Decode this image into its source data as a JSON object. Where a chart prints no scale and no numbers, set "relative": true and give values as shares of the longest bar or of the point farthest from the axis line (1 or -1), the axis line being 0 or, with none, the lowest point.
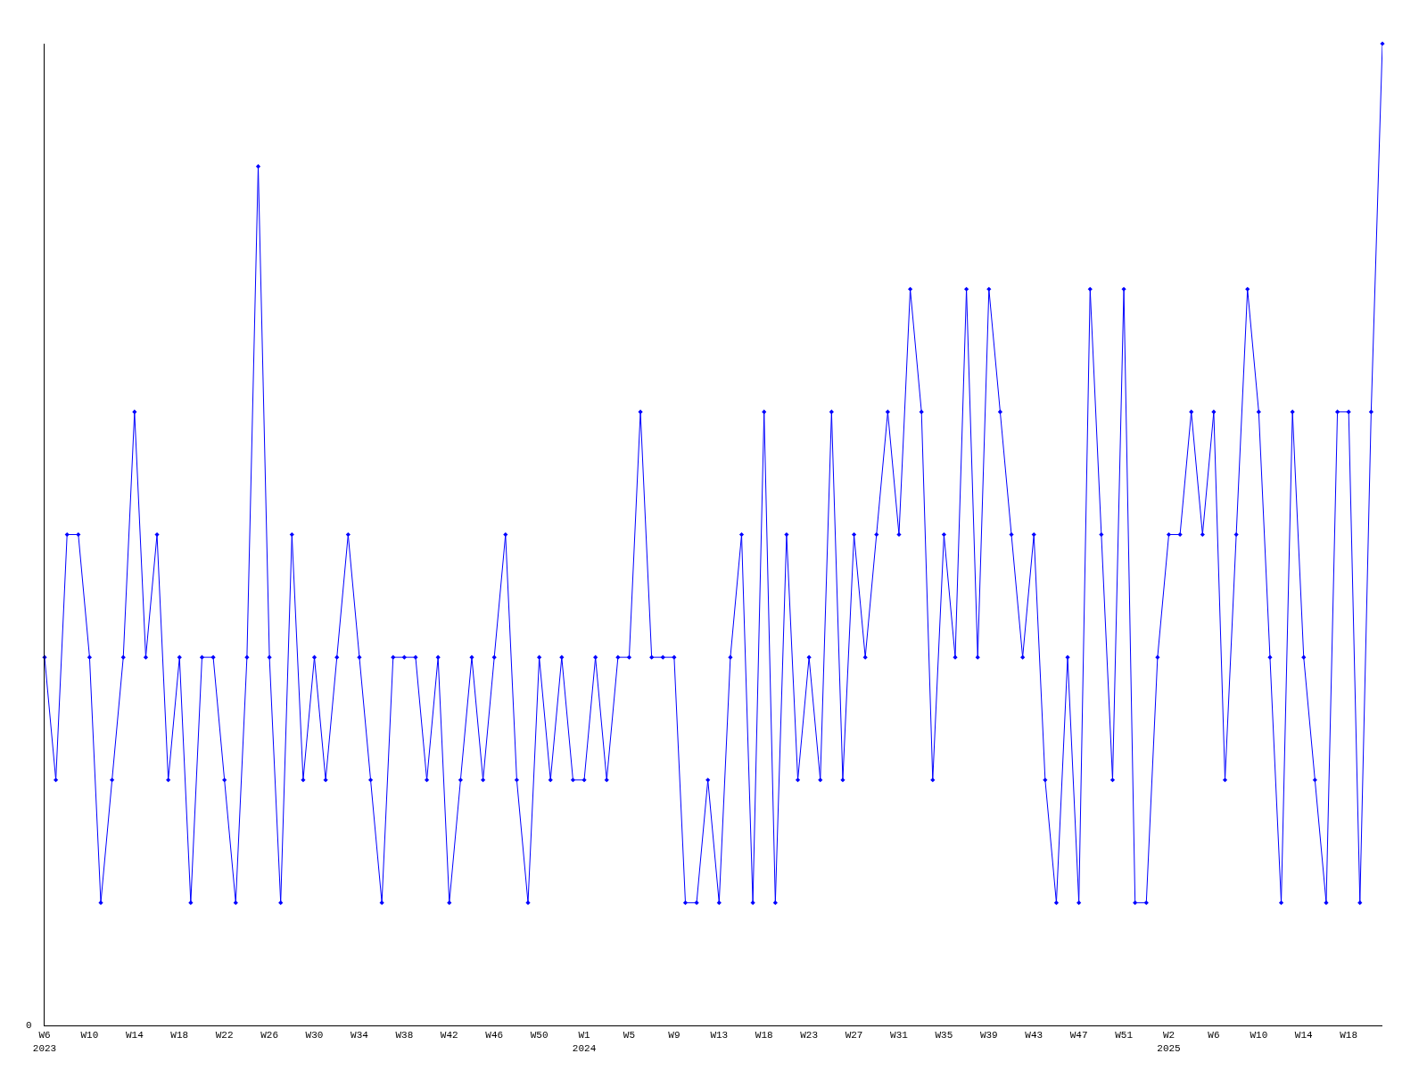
{
  "chart_data": {
    "type": "line",
    "relative": true,
    "marker": "diamond",
    "line_style": "solid",
    "annotations": [
      "0"
    ],
    "categories": [
      "W6\n2023",
      null,
      null,
      null,
      "W10",
      null,
      null,
      null,
      "W14",
      null,
      null,
      null,
      "W18",
      null,
      null,
      null,
      "W22",
      null,
      null,
      null,
      "W26",
      null,
      null,
      null,
      "W30",
      null,
      null,
      null,
      "W34",
      null,
      null,
      null,
      "W38",
      null,
      null,
      null,
      "W42",
      null,
      null,
      null,
      "W46",
      null,
      null,
      null,
      "W50",
      null,
      null,
      null,
      "W1\n2024",
      null,
      null,
      null,
      "W5",
      null,
      null,
      null,
      "W9",
      null,
      null,
      null,
      "W13",
      null,
      null,
      null,
      "W18",
      null,
      null,
      null,
      "W23",
      null,
      null,
      null,
      "W27",
      null,
      null,
      null,
      "W31",
      null,
      null,
      null,
      "W35",
      null,
      null,
      null,
      "W39",
      null,
      null,
      null,
      "W43",
      null,
      null,
      null,
      "W47",
      null,
      null,
      null,
      "W51",
      null,
      null,
      null,
      "W2\n2025",
      null,
      null,
      null,
      "W6",
      null,
      null,
      null,
      "W10",
      null,
      null,
      null,
      "W14",
      null,
      null,
      null,
      "W18",
      null,
      null,
      null
    ],
    "series": [
      {
        "color": "#0000ff",
        "values": [
          0.375,
          0.25,
          0.5,
          0.5,
          0.375,
          0.125,
          0.25,
          0.375,
          0.625,
          0.375,
          0.5,
          0.25,
          0.375,
          0.125,
          0.375,
          0.375,
          0.25,
          0.125,
          0.375,
          0.875,
          0.375,
          0.125,
          0.5,
          0.25,
          0.375,
          0.25,
          0.375,
          0.5,
          0.375,
          0.25,
          0.125,
          0.375,
          0.375,
          0.375,
          0.25,
          0.375,
          0.125,
          0.25,
          0.375,
          0.25,
          0.375,
          0.5,
          0.25,
          0.125,
          0.375,
          0.25,
          0.375,
          0.25,
          0.25,
          0.375,
          0.25,
          0.375,
          0.375,
          0.625,
          0.375,
          0.375,
          0.375,
          0.125,
          0.125,
          0.25,
          0.125,
          0.375,
          0.5,
          0.125,
          0.625,
          0.125,
          0.5,
          0.25,
          0.375,
          0.25,
          0.625,
          0.25,
          0.5,
          0.375,
          0.5,
          0.625,
          0.5,
          0.75,
          0.625,
          0.25,
          0.5,
          0.375,
          0.75,
          0.375,
          0.75,
          0.625,
          0.5,
          0.375,
          0.5,
          0.25,
          0.125,
          0.375,
          0.125,
          0.75,
          0.5,
          0.25,
          0.75,
          0.125,
          0.125,
          0.375,
          0.5,
          0.5,
          0.625,
          0.5,
          0.625,
          0.25,
          0.5,
          0.75,
          0.625,
          0.375,
          0.125,
          0.625,
          0.375,
          0.25,
          0.125,
          0.625,
          0.625,
          0.125,
          0.625,
          1
        ]
      }
    ]
  }
}
